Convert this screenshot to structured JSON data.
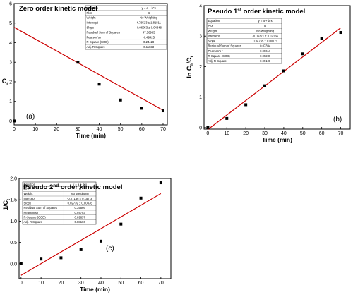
{
  "chart_data": [
    {
      "type": "scatter",
      "panel_label": "(a)",
      "title": "Zero order kinetic model",
      "xlabel": "Time (min)",
      "ylabel": "C_t",
      "xlim": [
        0,
        72
      ],
      "ylim": [
        -0.2,
        6
      ],
      "xticks": [
        "0",
        "10",
        "20",
        "30",
        "40",
        "50",
        "60",
        "70"
      ],
      "yticks": [
        "0",
        "1",
        "2",
        "3",
        "4",
        "5",
        "6"
      ],
      "x": [
        0,
        30,
        40,
        50,
        60,
        70
      ],
      "y": [
        0,
        3.0,
        1.88,
        1.07,
        0.65,
        0.52
      ],
      "fit": {
        "intercept": 4.78523,
        "slope": -0.06053
      },
      "stats": [
        [
          "Equation",
          "y = a + b*x"
        ],
        [
          "Plot",
          "B"
        ],
        [
          "Weight",
          "No Weighting"
        ],
        [
          "Intercept",
          "4.78523 ± 1.81811"
        ],
        [
          "Slope",
          "-0.06053 ± 0.04348"
        ],
        [
          "Residual Sum of Squares",
          "47.56965"
        ],
        [
          "Pearson's r",
          "-0.49425"
        ],
        [
          "R-Square (COD)",
          "0.24428"
        ],
        [
          "Adj. R-Square",
          "0.11833"
        ]
      ],
      "grid": false,
      "marker_color": "#000000",
      "line_color": "#cc0000"
    },
    {
      "type": "scatter",
      "panel_label": "(b)",
      "title": "Pseudo 1st order kinetic model",
      "title_parts": [
        "Pseudo 1",
        "st",
        " order kinetic model"
      ],
      "xlabel": "Time (min)",
      "ylabel": "ln C0/Ct",
      "xlim": [
        -2,
        75
      ],
      "ylim": [
        -0.05,
        4
      ],
      "xticks": [
        "0",
        "10",
        "20",
        "30",
        "40",
        "50",
        "60",
        "70"
      ],
      "yticks": [
        "0",
        "1",
        "2",
        "3",
        "4"
      ],
      "x": [
        0,
        10,
        20,
        30,
        40,
        50,
        60,
        70
      ],
      "y": [
        0,
        0.3,
        0.75,
        1.37,
        1.86,
        2.42,
        2.92,
        3.12
      ],
      "fit": {
        "intercept": -0.06371,
        "slope": 0.04765
      },
      "stats": [
        [
          "Equation",
          "y = a + b*x"
        ],
        [
          "Plot",
          "B"
        ],
        [
          "Weight",
          "No Weighting"
        ],
        [
          "Intercept",
          "-0.06371 ± 0.07166"
        ],
        [
          "Slope",
          "0.04765 ± 0.00171"
        ],
        [
          "Residual Sum of Squares",
          "0.07394"
        ],
        [
          "Pearson's r",
          "0.99617"
        ],
        [
          "R-Square (COD)",
          "0.99236"
        ],
        [
          "Adj. R-Square",
          "0.99108"
        ]
      ],
      "grid": false,
      "marker_color": "#000000",
      "line_color": "#cc0000"
    },
    {
      "type": "scatter",
      "panel_label": "(c)",
      "title": "Pseudo 2nd order kinetic model",
      "title_parts": [
        "Pseudo 2",
        "nd",
        " order kinetic model"
      ],
      "xlabel": "Time (min)",
      "ylabel": "1/C_t",
      "xlim": [
        -1,
        75
      ],
      "ylim": [
        -0.35,
        2.0
      ],
      "xticks": [
        "0",
        "10",
        "20",
        "30",
        "40",
        "50",
        "60",
        "70"
      ],
      "yticks": [
        "0.0",
        "0.5",
        "1.0",
        "1.5",
        "2.0"
      ],
      "x": [
        0,
        10,
        20,
        30,
        40,
        50,
        60,
        70
      ],
      "y": [
        0,
        0.11,
        0.14,
        0.33,
        0.53,
        0.93,
        1.54,
        1.9
      ],
      "fit": {
        "intercept": -0.27156,
        "slope": 0.02739
      },
      "stats": [
        [
          "Equation",
          "y = a + b*x"
        ],
        [
          "Plot",
          "B"
        ],
        [
          "Weight",
          "No Weighting"
        ],
        [
          "Intercept",
          "-0.27156 ± 0.15718"
        ],
        [
          "Slope",
          "0.02739 ± 0.00376"
        ],
        [
          "Residual Sum of Squares",
          "0.35566"
        ],
        [
          "Pearson's r",
          "0.94793"
        ],
        [
          "R-Square (COD)",
          "0.89857"
        ],
        [
          "Adj. R-Square",
          "0.88166"
        ]
      ],
      "grid": false,
      "marker_color": "#000000",
      "line_color": "#cc0000"
    }
  ]
}
